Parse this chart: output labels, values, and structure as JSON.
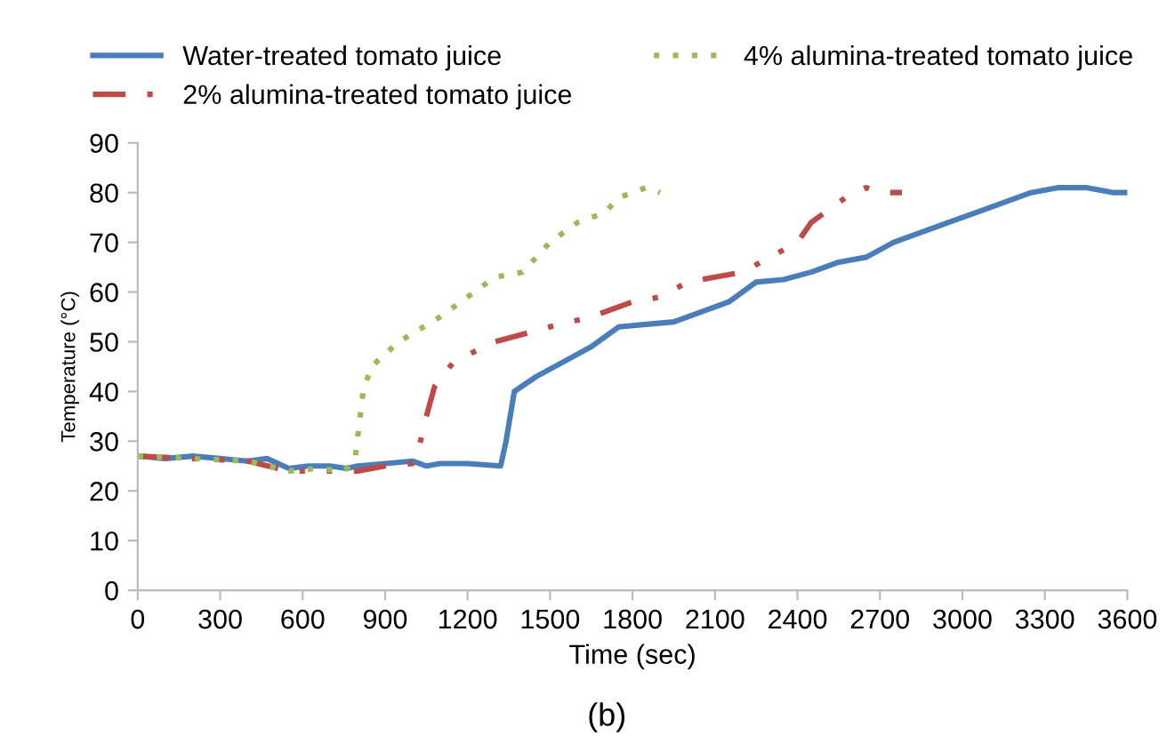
{
  "chart_data": {
    "type": "line",
    "xlabel": "Time (sec)",
    "ylabel": "Temperature (°C)",
    "annotations": [
      "(b)"
    ],
    "xlim": [
      0,
      3600
    ],
    "xticks": [
      0,
      300,
      600,
      900,
      1200,
      1500,
      1800,
      2100,
      2400,
      2700,
      3000,
      3300,
      3600
    ],
    "ylim": [
      0,
      90
    ],
    "yticks": [
      0,
      10,
      20,
      30,
      40,
      50,
      60,
      70,
      80,
      90
    ],
    "grid": false,
    "legend": "top",
    "marker": "none",
    "series": [
      {
        "name": "Water-treated tomato juice",
        "color": "#4a7ebb",
        "line_style": "solid",
        "x": [
          0,
          100,
          200,
          300,
          400,
          470,
          550,
          620,
          700,
          760,
          800,
          900,
          1000,
          1050,
          1100,
          1200,
          1320,
          1340,
          1370,
          1450,
          1550,
          1650,
          1750,
          1850,
          1950,
          2050,
          2150,
          2250,
          2350,
          2450,
          2550,
          2650,
          2750,
          2850,
          2950,
          3050,
          3150,
          3250,
          3350,
          3450,
          3550,
          3600
        ],
        "values": [
          27,
          26.5,
          27,
          26.5,
          26,
          26.5,
          24.5,
          25,
          25,
          24.5,
          25,
          25.5,
          26,
          25,
          25.5,
          25.5,
          25,
          30,
          40,
          43,
          46,
          49,
          53,
          53.5,
          54,
          56,
          58,
          62,
          62.5,
          64,
          66,
          67,
          70,
          72,
          74,
          76,
          78,
          80,
          81,
          81,
          80,
          80
        ]
      },
      {
        "name": "2% alumina-treated tomato juice",
        "color": "#be4b48",
        "line_style": "dashed",
        "x": [
          0,
          200,
          400,
          550,
          700,
          800,
          900,
          1000,
          1020,
          1050,
          1080,
          1150,
          1300,
          1500,
          1650,
          1800,
          1900,
          2000,
          2100,
          2200,
          2300,
          2400,
          2450,
          2550,
          2600,
          2650,
          2700,
          2780
        ],
        "values": [
          27,
          26.5,
          26,
          24,
          24,
          24,
          25,
          25.5,
          28,
          35,
          41,
          46,
          50,
          53,
          55,
          58,
          59,
          62,
          63,
          64,
          67,
          70,
          74,
          78,
          80,
          81,
          80,
          80
        ]
      },
      {
        "name": "4% alumina-treated tomato juice",
        "color": "#9bbb59",
        "line_style": "dotted",
        "x": [
          0,
          200,
          400,
          550,
          650,
          750,
          790,
          820,
          850,
          950,
          1100,
          1200,
          1300,
          1400,
          1500,
          1600,
          1700,
          1750,
          1850,
          1900
        ],
        "values": [
          27,
          26.5,
          26,
          24,
          24.5,
          24,
          26,
          40,
          45,
          50,
          55,
          59,
          63,
          64,
          70,
          74,
          76,
          79,
          81,
          80
        ]
      }
    ]
  }
}
